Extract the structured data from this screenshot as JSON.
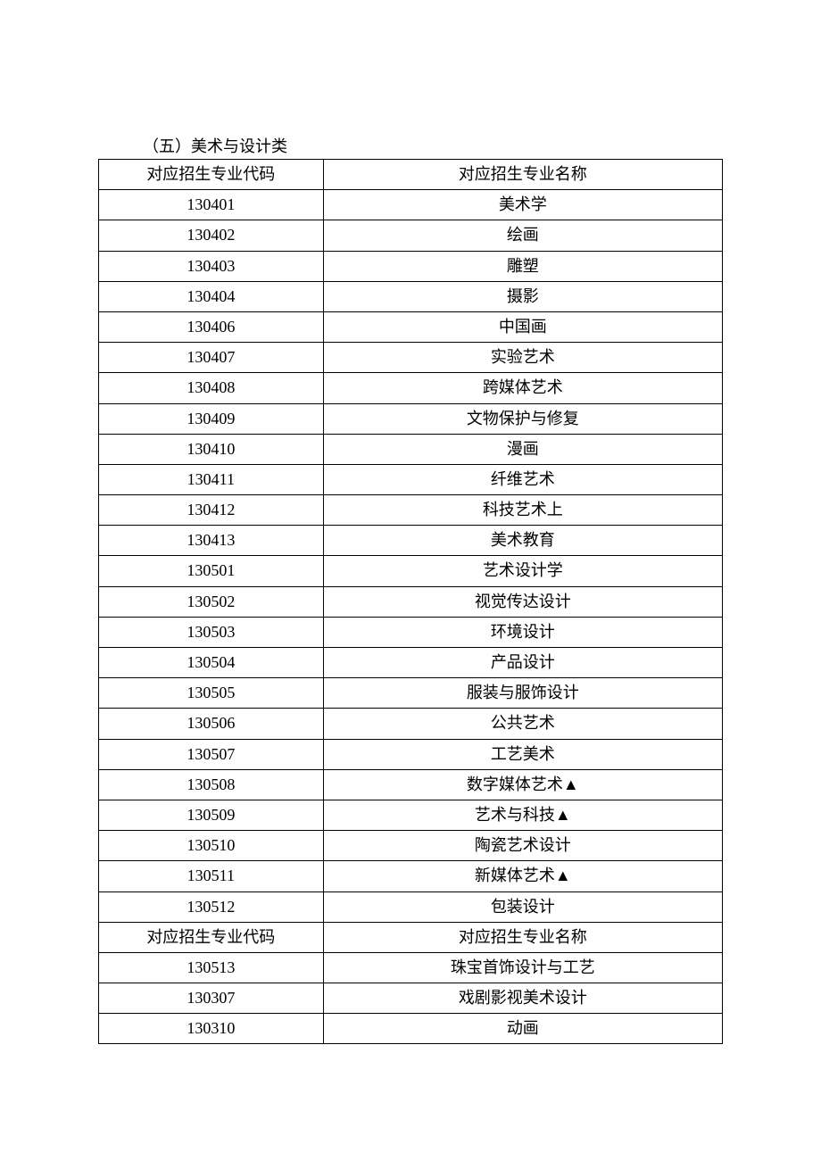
{
  "section_title": "（五）美术与设计类",
  "table": {
    "columns": [
      "对应招生专业代码",
      "对应招生专业名称"
    ],
    "col_widths_pct": [
      36,
      64
    ],
    "border_color": "#000000",
    "font_size_pt": 14,
    "rows": [
      [
        "对应招生专业代码",
        "对应招生专业名称"
      ],
      [
        "130401",
        "美术学"
      ],
      [
        "130402",
        "绘画"
      ],
      [
        "130403",
        "雕塑"
      ],
      [
        "130404",
        "摄影"
      ],
      [
        "130406",
        "中国画"
      ],
      [
        "130407",
        "实验艺术"
      ],
      [
        "130408",
        "跨媒体艺术"
      ],
      [
        "130409",
        "文物保护与修复"
      ],
      [
        "130410",
        "漫画"
      ],
      [
        "130411",
        "纤维艺术"
      ],
      [
        "130412",
        "科技艺术上"
      ],
      [
        "130413",
        "美术教育"
      ],
      [
        "130501",
        "艺术设计学"
      ],
      [
        "130502",
        "视觉传达设计"
      ],
      [
        "130503",
        "环境设计"
      ],
      [
        "130504",
        "产品设计"
      ],
      [
        "130505",
        "服装与服饰设计"
      ],
      [
        "130506",
        "公共艺术"
      ],
      [
        "130507",
        "工艺美术"
      ],
      [
        "130508",
        "数字媒体艺术▲"
      ],
      [
        "130509",
        "艺术与科技▲"
      ],
      [
        "130510",
        "陶瓷艺术设计"
      ],
      [
        "130511",
        "新媒体艺术▲"
      ],
      [
        "130512",
        "包装设计"
      ],
      [
        "对应招生专业代码",
        "对应招生专业名称"
      ],
      [
        "130513",
        "珠宝首饰设计与工艺"
      ],
      [
        "130307",
        "戏剧影视美术设计"
      ],
      [
        "130310",
        "动画"
      ]
    ]
  }
}
